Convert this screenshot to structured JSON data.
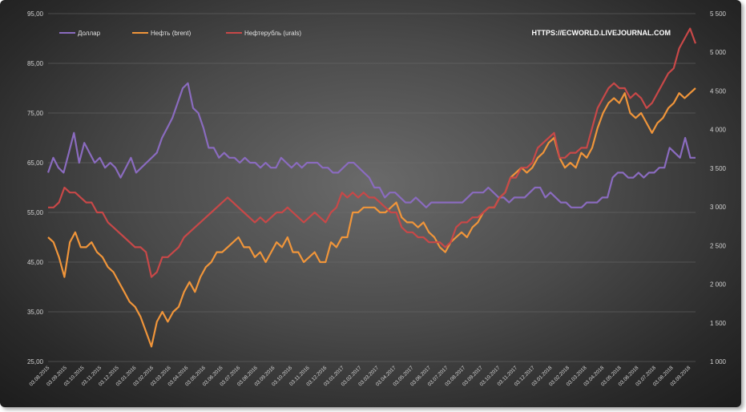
{
  "chart_data": {
    "type": "line",
    "watermark": "HTTPS://ECWORLD.LIVEJOURNAL.COM",
    "left_axis": {
      "ticks": [
        "25,00",
        "35,00",
        "45,00",
        "55,00",
        "65,00",
        "75,00",
        "85,00",
        "95,00"
      ],
      "ylim": [
        25,
        95
      ]
    },
    "right_axis": {
      "ticks": [
        "1 000",
        "1 500",
        "2 000",
        "2 500",
        "3 000",
        "3 500",
        "4 000",
        "4 500",
        "5 000",
        "5 500"
      ],
      "ylim": [
        1000,
        5500
      ]
    },
    "x_ticks": [
      "03.08.2015",
      "03.09.2015",
      "03.10.2015",
      "03.11.2015",
      "03.12.2015",
      "03.01.2016",
      "03.02.2016",
      "03.03.2016",
      "03.04.2016",
      "03.05.2016",
      "03.06.2016",
      "03.07.2016",
      "03.08.2016",
      "03.09.2016",
      "03.10.2016",
      "03.11.2016",
      "03.12.2016",
      "03.01.2017",
      "03.02.2017",
      "03.03.2017",
      "03.04.2017",
      "03.05.2017",
      "03.06.2017",
      "03.07.2017",
      "03.08.2017",
      "03.09.2017",
      "03.10.2017",
      "03.11.2017",
      "03.12.2017",
      "03.01.2018",
      "03.02.2018",
      "03.03.2018",
      "03.04.2018",
      "03.05.2018",
      "03.06.2018",
      "03.07.2018",
      "03.08.2018",
      "03.09.2018"
    ],
    "grid": true,
    "legend_position": "top-left",
    "series": [
      {
        "name": "Доллар",
        "axis": "left",
        "color": "#8a6bbf",
        "values": [
          63,
          66,
          64,
          63,
          67,
          71,
          65,
          69,
          67,
          65,
          66,
          64,
          65,
          64,
          62,
          64,
          66,
          63,
          64,
          65,
          66,
          67,
          70,
          72,
          74,
          77,
          80,
          81,
          76,
          75,
          72,
          68,
          68,
          66,
          67,
          66,
          66,
          65,
          66,
          65,
          65,
          64,
          65,
          64,
          64,
          66,
          65,
          64,
          65,
          64,
          65,
          65,
          65,
          64,
          64,
          63,
          63,
          64,
          65,
          65,
          64,
          63,
          62,
          60,
          60,
          58,
          59,
          59,
          58,
          57,
          57,
          58,
          57,
          56,
          57,
          57,
          57,
          57,
          57,
          57,
          57,
          58,
          59,
          59,
          59,
          60,
          59,
          58,
          58,
          57,
          58,
          58,
          58,
          59,
          60,
          60,
          58,
          59,
          58,
          57,
          57,
          56,
          56,
          56,
          57,
          57,
          57,
          58,
          58,
          62,
          63,
          63,
          62,
          62,
          63,
          62,
          63,
          63,
          64,
          64,
          68,
          67,
          66,
          70,
          66,
          66
        ]
      },
      {
        "name": "Нефть (brent)",
        "axis": "left",
        "color": "#f0953a",
        "values": [
          50,
          49,
          46,
          42,
          49,
          51,
          48,
          48,
          49,
          47,
          46,
          44,
          43,
          41,
          39,
          37,
          36,
          34,
          31,
          28,
          33,
          35,
          33,
          35,
          36,
          39,
          41,
          39,
          42,
          44,
          45,
          47,
          47,
          48,
          49,
          50,
          48,
          48,
          46,
          47,
          45,
          47,
          49,
          48,
          50,
          47,
          47,
          45,
          46,
          47,
          45,
          45,
          49,
          48,
          50,
          50,
          55,
          55,
          56,
          56,
          56,
          55,
          55,
          56,
          57,
          54,
          53,
          53,
          52,
          53,
          51,
          50,
          48,
          47,
          49,
          50,
          51,
          50,
          52,
          53,
          55,
          56,
          56,
          58,
          59,
          62,
          63,
          64,
          63,
          64,
          66,
          67,
          69,
          70,
          66,
          64,
          65,
          64,
          67,
          66,
          68,
          72,
          75,
          77,
          78,
          77,
          79,
          75,
          74,
          75,
          73,
          71,
          73,
          74,
          76,
          77,
          79,
          78,
          79,
          80
        ]
      },
      {
        "name": "Нефтерубль (urals)",
        "axis": "left",
        "color": "#c84848",
        "values": [
          56,
          56,
          57,
          60,
          59,
          59,
          58,
          57,
          57,
          55,
          55,
          53,
          52,
          51,
          50,
          49,
          48,
          48,
          47,
          42,
          43,
          46,
          46,
          47,
          48,
          50,
          51,
          52,
          53,
          54,
          55,
          56,
          57,
          58,
          57,
          56,
          55,
          54,
          53,
          54,
          53,
          54,
          55,
          55,
          56,
          55,
          54,
          53,
          54,
          55,
          54,
          53,
          55,
          56,
          59,
          58,
          59,
          58,
          59,
          58,
          58,
          57,
          56,
          55,
          55,
          52,
          51,
          51,
          50,
          50,
          49,
          49,
          49,
          48,
          49,
          52,
          53,
          53,
          54,
          54,
          55,
          56,
          56,
          58,
          59,
          62,
          62,
          64,
          64,
          65,
          68,
          69,
          70,
          71,
          66,
          66,
          67,
          67,
          68,
          68,
          72,
          76,
          78,
          80,
          81,
          80,
          80,
          78,
          79,
          78,
          76,
          77,
          79,
          81,
          83,
          84,
          88,
          90,
          92,
          89
        ]
      }
    ]
  }
}
